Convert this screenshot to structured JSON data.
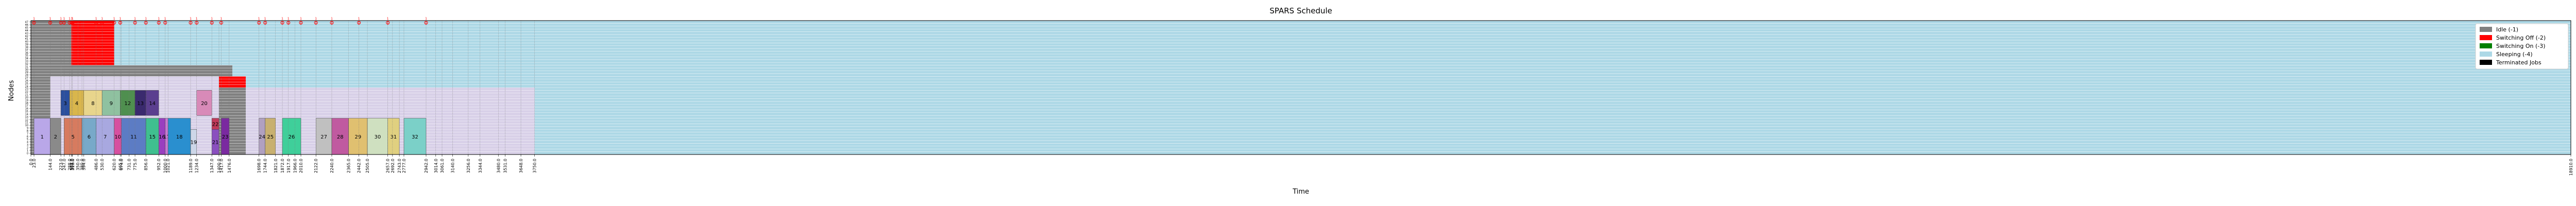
{
  "chart_data": {
    "type": "gantt",
    "title": "SPARS Schedule",
    "xlabel": "Time",
    "ylabel": "Nodes",
    "xlim": [
      0,
      18910
    ],
    "ylim": [
      0,
      48
    ],
    "legend_position": "top-right",
    "grid": "vertical dotted lines at event times",
    "legend": [
      {
        "key": "idle",
        "label": "Idle (-1)",
        "color": "#808080"
      },
      {
        "key": "switch_off",
        "label": "Switching Off (-2)",
        "color": "#ff0000"
      },
      {
        "key": "switch_on",
        "label": "Switching On (-3)",
        "color": "#008000"
      },
      {
        "key": "sleeping",
        "label": "Sleeping (-4)",
        "color": "#add8e6"
      },
      {
        "key": "terminated",
        "label": "Terminated Jobs",
        "color": "#000000"
      }
    ],
    "x_tick_labels": [
      "0.0",
      "23.0",
      "144.0",
      "223.0",
      "247.0",
      "288.0",
      "303.0",
      "304.0",
      "310.0",
      "350.0",
      "380.0",
      "394.0",
      "486.0",
      "530.0",
      "620.0",
      "665.0",
      "674.0",
      "731.0",
      "775.0",
      "856.0",
      "952.0",
      "1000.0",
      "1021.0",
      "1189.0",
      "1234.0",
      "1347.0",
      "1400.0",
      "1417.0",
      "1476.0",
      "1698.0",
      "1744.0",
      "1821.0",
      "1872.0",
      "1917.0",
      "1966.0",
      "2010.0",
      "2122.0",
      "2240.0",
      "2365.0",
      "2442.0",
      "2505.0",
      "2657.0",
      "2692.0",
      "2743.0",
      "2777.0",
      "2942.0",
      "3014.0",
      "3061.0",
      "3140.0",
      "3256.0",
      "3344.0",
      "3480.0",
      "3531.0",
      "3648.0",
      "3750.0",
      "18910.0"
    ],
    "events": [
      {
        "time": 23,
        "nodes": 1
      },
      {
        "time": 144,
        "nodes": 1
      },
      {
        "time": 223,
        "nodes": 1
      },
      {
        "time": 247,
        "nodes": 1
      },
      {
        "time": 288,
        "nodes": 1
      },
      {
        "time": 304,
        "nodes": 1
      },
      {
        "time": 310,
        "nodes": 1
      },
      {
        "time": 486,
        "nodes": 1
      },
      {
        "time": 530,
        "nodes": 1
      },
      {
        "time": 620,
        "nodes": 1
      },
      {
        "time": 665,
        "nodes": 1
      },
      {
        "time": 775,
        "nodes": 1
      },
      {
        "time": 856,
        "nodes": 1
      },
      {
        "time": 952,
        "nodes": 1
      },
      {
        "time": 1000,
        "nodes": 1
      },
      {
        "time": 1189,
        "nodes": 1
      },
      {
        "time": 1234,
        "nodes": 1
      },
      {
        "time": 1347,
        "nodes": 1
      },
      {
        "time": 1417,
        "nodes": 1
      },
      {
        "time": 1698,
        "nodes": 1
      },
      {
        "time": 1744,
        "nodes": 1
      },
      {
        "time": 1872,
        "nodes": 1
      },
      {
        "time": 1917,
        "nodes": 1
      },
      {
        "time": 2010,
        "nodes": 1
      },
      {
        "time": 2122,
        "nodes": 1
      },
      {
        "time": 2240,
        "nodes": 1
      },
      {
        "time": 2442,
        "nodes": 1
      },
      {
        "time": 2657,
        "nodes": 1
      },
      {
        "time": 2942,
        "nodes": 1
      }
    ],
    "node_bands": [
      {
        "nodes": [
          0,
          23
        ],
        "segments": [
          {
            "start": 0,
            "end": 144,
            "state": "idle"
          },
          {
            "start": 144,
            "end": 1400,
            "state": "job"
          },
          {
            "start": 1400,
            "end": 1600,
            "state": "idle"
          },
          {
            "start": 1600,
            "end": 3750,
            "state": "job"
          },
          {
            "start": 3750,
            "end": 18910,
            "state": "sleeping"
          }
        ]
      },
      {
        "nodes": [
          24,
          27
        ],
        "segments": [
          {
            "start": 0,
            "end": 144,
            "state": "idle"
          },
          {
            "start": 144,
            "end": 1400,
            "state": "job"
          },
          {
            "start": 1400,
            "end": 1600,
            "state": "switch_off"
          },
          {
            "start": 1600,
            "end": 18910,
            "state": "sleeping"
          }
        ]
      },
      {
        "nodes": [
          28,
          31
        ],
        "segments": [
          {
            "start": 0,
            "end": 223,
            "state": "idle"
          },
          {
            "start": 223,
            "end": 1500,
            "state": "idle"
          },
          {
            "start": 1500,
            "end": 18910,
            "state": "sleeping"
          }
        ]
      },
      {
        "nodes": [
          32,
          47
        ],
        "segments": [
          {
            "start": 0,
            "end": 300,
            "state": "idle"
          },
          {
            "start": 300,
            "end": 620,
            "state": "switch_off"
          },
          {
            "start": 620,
            "end": 18910,
            "state": "sleeping"
          }
        ]
      }
    ],
    "jobs": [
      {
        "id": "1",
        "start": 23,
        "end": 144,
        "nodes": [
          0,
          12
        ],
        "color": "#b9a7e8"
      },
      {
        "id": "2",
        "start": 144,
        "end": 223,
        "nodes": [
          0,
          12
        ],
        "color": "#8a8a8a"
      },
      {
        "id": "3",
        "start": 223,
        "end": 288,
        "nodes": [
          14,
          22
        ],
        "color": "#2b4f9e"
      },
      {
        "id": "4",
        "start": 288,
        "end": 394,
        "nodes": [
          14,
          22
        ],
        "color": "#d9b64c"
      },
      {
        "id": "5",
        "start": 247,
        "end": 380,
        "nodes": [
          0,
          12
        ],
        "color": "#d77b5f"
      },
      {
        "id": "6",
        "start": 380,
        "end": 486,
        "nodes": [
          0,
          12
        ],
        "color": "#78a9c9"
      },
      {
        "id": "7",
        "start": 486,
        "end": 620,
        "nodes": [
          0,
          12
        ],
        "color": "#a8a8e0"
      },
      {
        "id": "8",
        "start": 394,
        "end": 530,
        "nodes": [
          14,
          22
        ],
        "color": "#e8d58c"
      },
      {
        "id": "9",
        "start": 530,
        "end": 665,
        "nodes": [
          14,
          22
        ],
        "color": "#8fc1a0"
      },
      {
        "id": "10",
        "start": 620,
        "end": 674,
        "nodes": [
          0,
          12
        ],
        "color": "#d74fa0"
      },
      {
        "id": "11",
        "start": 674,
        "end": 856,
        "nodes": [
          0,
          12
        ],
        "color": "#5c7cc4"
      },
      {
        "id": "12",
        "start": 665,
        "end": 775,
        "nodes": [
          14,
          22
        ],
        "color": "#4f8f4f"
      },
      {
        "id": "13",
        "start": 775,
        "end": 856,
        "nodes": [
          14,
          22
        ],
        "color": "#3a2a6e"
      },
      {
        "id": "14",
        "start": 856,
        "end": 952,
        "nodes": [
          14,
          22
        ],
        "color": "#5b3f8f"
      },
      {
        "id": "15",
        "start": 856,
        "end": 952,
        "nodes": [
          0,
          12
        ],
        "color": "#3fbf8f"
      },
      {
        "id": "16",
        "start": 952,
        "end": 1000,
        "nodes": [
          0,
          12
        ],
        "color": "#9a3fbf"
      },
      {
        "id": "17",
        "start": 1000,
        "end": 1021,
        "nodes": [
          0,
          12
        ],
        "color": "#c77bd0"
      },
      {
        "id": "18",
        "start": 1021,
        "end": 1189,
        "nodes": [
          0,
          12
        ],
        "color": "#2a8fcf"
      },
      {
        "id": "19",
        "start": 1189,
        "end": 1234,
        "nodes": [
          0,
          8
        ],
        "color": "#cdd6e8"
      },
      {
        "id": "20",
        "start": 1234,
        "end": 1347,
        "nodes": [
          14,
          22
        ],
        "color": "#d88ab8"
      },
      {
        "id": "21",
        "start": 1347,
        "end": 1400,
        "nodes": [
          0,
          8
        ],
        "color": "#8a4fbf"
      },
      {
        "id": "22",
        "start": 1347,
        "end": 1400,
        "nodes": [
          9,
          12
        ],
        "color": "#c03a5a"
      },
      {
        "id": "23",
        "start": 1417,
        "end": 1476,
        "nodes": [
          0,
          12
        ],
        "color": "#7a2aa0"
      },
      {
        "id": "24",
        "start": 1698,
        "end": 1744,
        "nodes": [
          0,
          12
        ],
        "color": "#b0a0c0"
      },
      {
        "id": "25",
        "start": 1744,
        "end": 1821,
        "nodes": [
          0,
          12
        ],
        "color": "#c8b070"
      },
      {
        "id": "26",
        "start": 1872,
        "end": 2010,
        "nodes": [
          0,
          12
        ],
        "color": "#3fcf9a"
      },
      {
        "id": "27",
        "start": 2122,
        "end": 2240,
        "nodes": [
          0,
          12
        ],
        "color": "#c0c0c0"
      },
      {
        "id": "28",
        "start": 2240,
        "end": 2365,
        "nodes": [
          0,
          12
        ],
        "color": "#c05aa0"
      },
      {
        "id": "29",
        "start": 2365,
        "end": 2505,
        "nodes": [
          0,
          12
        ],
        "color": "#e0c070"
      },
      {
        "id": "30",
        "start": 2505,
        "end": 2657,
        "nodes": [
          0,
          12
        ],
        "color": "#cfe0c0"
      },
      {
        "id": "31",
        "start": 2657,
        "end": 2743,
        "nodes": [
          0,
          12
        ],
        "color": "#e0d080"
      },
      {
        "id": "32",
        "start": 2777,
        "end": 2942,
        "nodes": [
          0,
          12
        ],
        "color": "#7bd0c8"
      }
    ]
  }
}
